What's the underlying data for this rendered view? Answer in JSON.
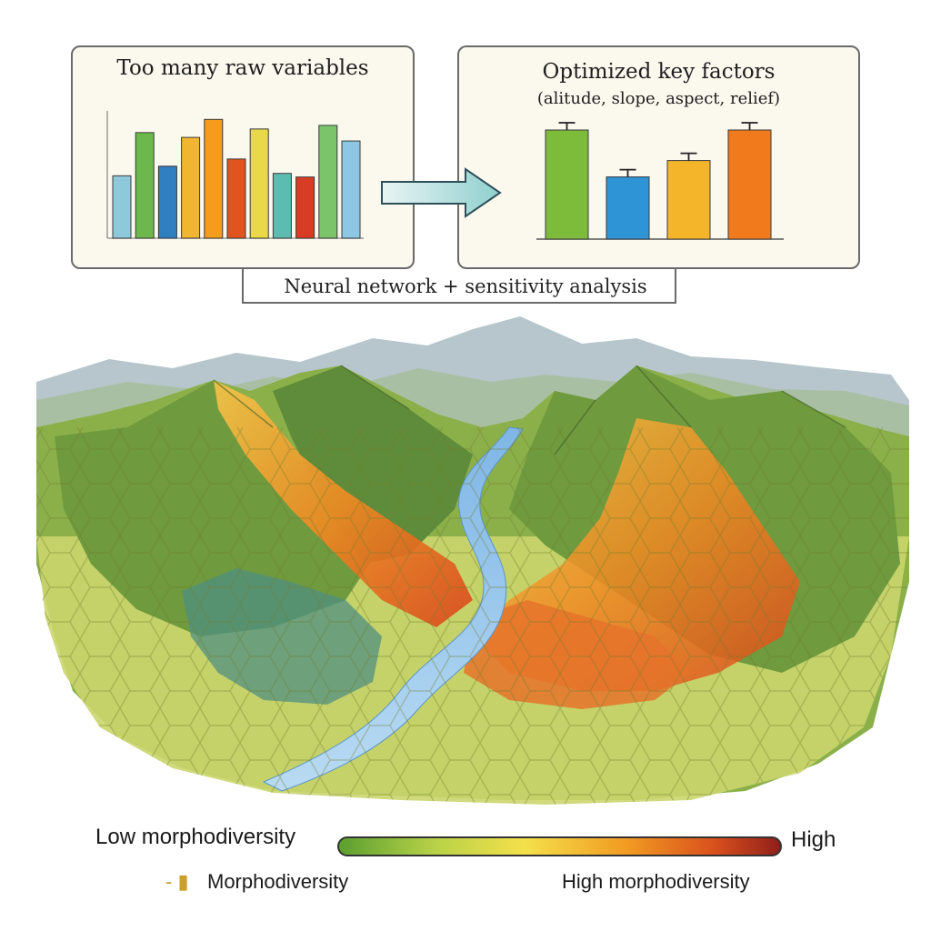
{
  "top": {
    "left_panel": {
      "title": "Too many raw variables"
    },
    "right_panel": {
      "title": "Optimized key factors",
      "subtitle": "(alitude, slope, aspect, relief)"
    },
    "process_label": "Neural network + sensitivity analysis"
  },
  "chart_data": [
    {
      "type": "bar",
      "title": "Too many raw variables",
      "values": [
        52,
        88,
        60,
        84,
        99,
        66,
        91,
        54,
        51,
        94,
        81
      ],
      "colors": [
        "#8ec9db",
        "#6cb84c",
        "#2f7fc1",
        "#f0b62f",
        "#f39c1e",
        "#e2541f",
        "#e9d84a",
        "#5dbcb1",
        "#d83c25",
        "#7cc46a",
        "#8cc8e4"
      ],
      "ylim": [
        0,
        100
      ]
    },
    {
      "type": "bar",
      "title": "Optimized key factors",
      "categories": [
        "alitude",
        "slope",
        "aspect",
        "relief"
      ],
      "values": [
        100,
        57,
        72,
        100
      ],
      "colors": [
        "#7cbc3a",
        "#2e94d6",
        "#f5b52b",
        "#f07a1c"
      ],
      "ylim": [
        0,
        100
      ]
    }
  ],
  "legend": {
    "low_label": "Low morphodiversity",
    "high_label": "High",
    "morpho_prefix": "- ▮",
    "morpho_label": "Morphodiversity",
    "high_morpho_label": "High morphodiversity",
    "gradient_colors": [
      "#5a9e2f",
      "#b9d248",
      "#f4e04a",
      "#f29b22",
      "#d9501d",
      "#8e1e1a"
    ]
  }
}
